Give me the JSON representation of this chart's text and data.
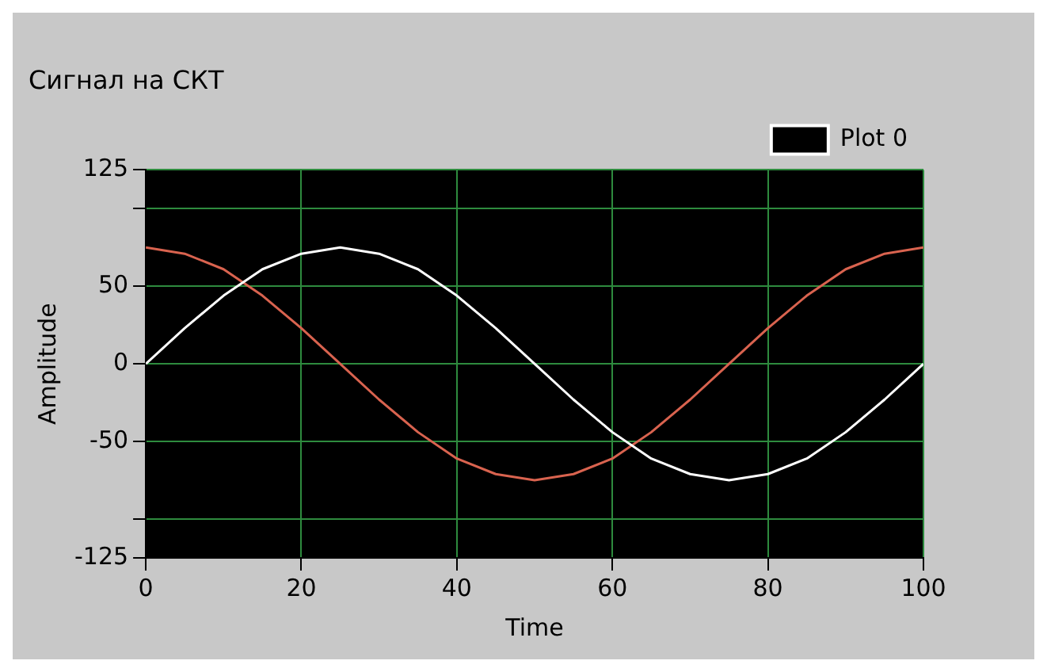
{
  "chart_data": {
    "type": "line",
    "title": "Сигнал на СКТ",
    "xlabel": "Time",
    "ylabel": "Amplitude",
    "x": [
      0,
      5,
      10,
      15,
      20,
      25,
      30,
      35,
      40,
      45,
      50,
      55,
      60,
      65,
      70,
      75,
      80,
      85,
      90,
      95,
      100
    ],
    "series": [
      {
        "name": "Plot 0",
        "color": "#ffffff",
        "values": [
          0,
          23,
          44,
          61,
          71,
          75,
          71,
          61,
          44,
          23,
          0,
          -23,
          -44,
          -61,
          -71,
          -75,
          -71,
          -61,
          -44,
          -23,
          0
        ]
      },
      {
        "color": "#d9634f",
        "values": [
          75,
          71,
          61,
          44,
          23,
          0,
          -23,
          -44,
          -61,
          -71,
          -75,
          -71,
          -61,
          -44,
          -23,
          0,
          23,
          44,
          61,
          71,
          75
        ]
      }
    ],
    "xlim": [
      0,
      100
    ],
    "xticks": [
      0,
      20,
      40,
      60,
      80,
      100
    ],
    "ylim": [
      -125,
      125
    ],
    "yticks": [
      -125,
      {
        "value": -100,
        "label": null
      },
      -50,
      0,
      50,
      {
        "value": 100,
        "label": null
      },
      125
    ],
    "grid": true,
    "legend": "top right",
    "marker": "none",
    "line_style": "solid"
  }
}
